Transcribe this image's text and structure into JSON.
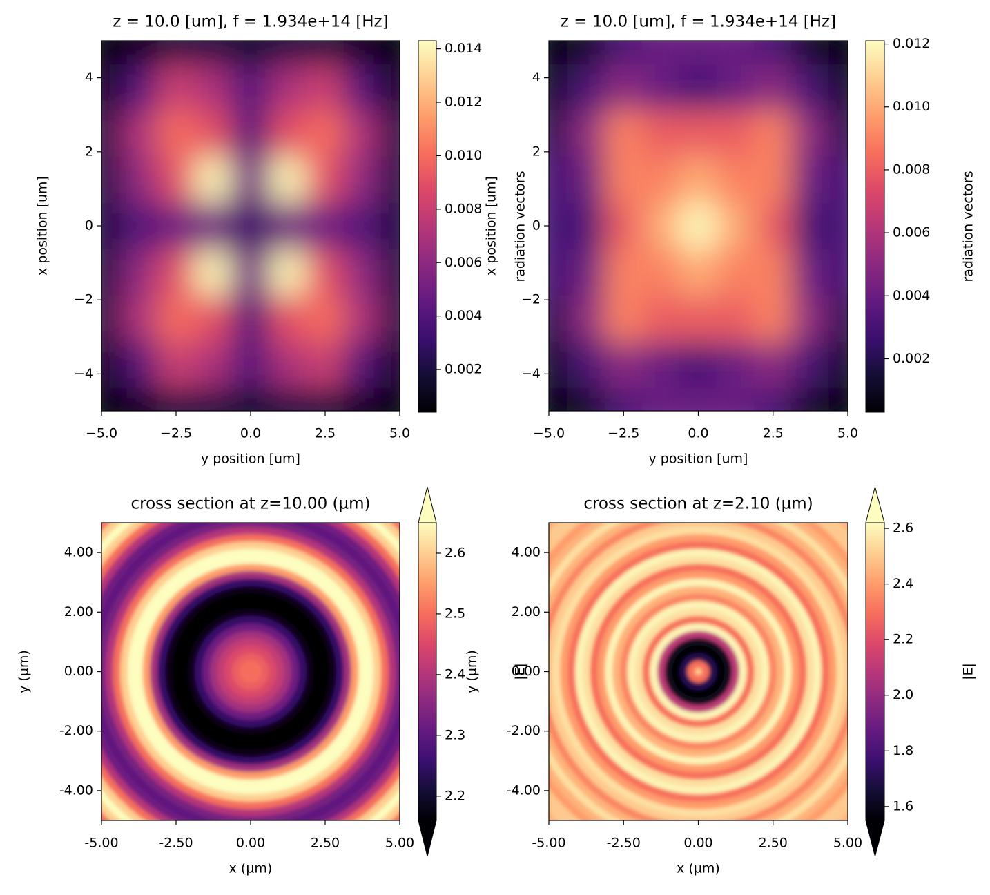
{
  "chart_data": [
    {
      "type": "heatmap",
      "title": "z = 10.0 [um], f = 1.934e+14 [Hz]",
      "xlabel": "y position [um]",
      "ylabel": "x position [um]",
      "colorbar_label": "radiation vectors",
      "colormap": "magma",
      "x": [
        -5,
        -3.75,
        -2.5,
        -1.25,
        0,
        1.25,
        2.5,
        3.75,
        5
      ],
      "y": [
        -5,
        -3.75,
        -2.5,
        -1.25,
        0,
        1.25,
        2.5,
        3.75,
        5
      ],
      "z": [
        [
          0.0004,
          0.001,
          0.002,
          0.002,
          0.0015,
          0.002,
          0.002,
          0.001,
          0.0004
        ],
        [
          0.001,
          0.004,
          0.008,
          0.007,
          0.004,
          0.007,
          0.008,
          0.004,
          0.001
        ],
        [
          0.002,
          0.007,
          0.01,
          0.009,
          0.004,
          0.009,
          0.01,
          0.007,
          0.002
        ],
        [
          0.002,
          0.006,
          0.009,
          0.014,
          0.005,
          0.014,
          0.009,
          0.006,
          0.002
        ],
        [
          0.002,
          0.004,
          0.005,
          0.005,
          0.003,
          0.005,
          0.005,
          0.004,
          0.002
        ],
        [
          0.002,
          0.006,
          0.009,
          0.014,
          0.005,
          0.014,
          0.009,
          0.006,
          0.002
        ],
        [
          0.002,
          0.007,
          0.01,
          0.009,
          0.004,
          0.009,
          0.01,
          0.007,
          0.002
        ],
        [
          0.001,
          0.004,
          0.008,
          0.007,
          0.004,
          0.007,
          0.008,
          0.004,
          0.001
        ],
        [
          0.0004,
          0.001,
          0.002,
          0.002,
          0.0015,
          0.002,
          0.002,
          0.001,
          0.0004
        ]
      ],
      "xlim": [
        -5,
        5
      ],
      "ylim": [
        -5,
        5
      ],
      "xticks": [
        {
          "value": -5,
          "label": "−5.0"
        },
        {
          "value": -2.5,
          "label": "−2.5"
        },
        {
          "value": 0,
          "label": "0.0"
        },
        {
          "value": 2.5,
          "label": "2.5"
        },
        {
          "value": 5,
          "label": "5.0"
        }
      ],
      "yticks": [
        {
          "value": -4,
          "label": "−4"
        },
        {
          "value": -2,
          "label": "−2"
        },
        0,
        2,
        4
      ],
      "clim": [
        0.0004,
        0.0143
      ],
      "cticks": [
        0.002,
        0.004,
        0.006,
        0.008,
        {
          "value": 0.01,
          "label": "0.010"
        },
        0.012,
        0.014
      ]
    },
    {
      "type": "heatmap",
      "title": "z = 10.0 [um], f = 1.934e+14 [Hz]",
      "xlabel": "y position [um]",
      "ylabel": "x position [um]",
      "colorbar_label": "radiation vectors",
      "colormap": "magma",
      "x": [
        -5,
        -3.75,
        -2.5,
        -1.25,
        0,
        1.25,
        2.5,
        3.75,
        5
      ],
      "y": [
        -5,
        -3.75,
        -2.5,
        -1.25,
        0,
        1.25,
        2.5,
        3.75,
        5
      ],
      "z": [
        [
          0.0003,
          0.001,
          0.003,
          0.004,
          0.004,
          0.004,
          0.003,
          0.001,
          0.0003
        ],
        [
          0.001,
          0.003,
          0.005,
          0.004,
          0.003,
          0.004,
          0.005,
          0.003,
          0.001
        ],
        [
          0.002,
          0.005,
          0.009,
          0.008,
          0.008,
          0.008,
          0.009,
          0.005,
          0.002
        ],
        [
          0.003,
          0.004,
          0.009,
          0.009,
          0.01,
          0.009,
          0.009,
          0.004,
          0.003
        ],
        [
          0.003,
          0.003,
          0.008,
          0.01,
          0.012,
          0.01,
          0.008,
          0.003,
          0.003
        ],
        [
          0.003,
          0.004,
          0.009,
          0.009,
          0.01,
          0.009,
          0.009,
          0.004,
          0.003
        ],
        [
          0.002,
          0.005,
          0.009,
          0.008,
          0.008,
          0.008,
          0.009,
          0.005,
          0.002
        ],
        [
          0.001,
          0.003,
          0.005,
          0.004,
          0.003,
          0.004,
          0.005,
          0.003,
          0.001
        ],
        [
          0.0003,
          0.001,
          0.003,
          0.004,
          0.004,
          0.004,
          0.003,
          0.001,
          0.0003
        ]
      ],
      "xlim": [
        -5,
        5
      ],
      "ylim": [
        -5,
        5
      ],
      "xticks": [
        {
          "value": -5,
          "label": "−5.0"
        },
        {
          "value": -2.5,
          "label": "−2.5"
        },
        {
          "value": 0,
          "label": "0.0"
        },
        {
          "value": 2.5,
          "label": "2.5"
        },
        {
          "value": 5,
          "label": "5.0"
        }
      ],
      "yticks": [
        {
          "value": -4,
          "label": "−4"
        },
        {
          "value": -2,
          "label": "−2"
        },
        0,
        2,
        4
      ],
      "clim": [
        0.0003,
        0.0121
      ],
      "cticks": [
        0.002,
        0.004,
        0.006,
        0.008,
        {
          "value": 0.01,
          "label": "0.010"
        },
        0.012
      ]
    },
    {
      "type": "radial",
      "title": "cross section at z=10.00 (µm)",
      "xlabel": "x (µm)",
      "ylabel": "y (µm)",
      "colorbar_label": "|E|",
      "colormap": "magma",
      "extend": "both",
      "r": [
        0,
        0.25,
        0.5,
        0.75,
        1,
        1.25,
        1.5,
        1.75,
        2,
        2.25,
        2.5,
        2.75,
        3,
        3.25,
        3.5,
        3.75,
        4,
        4.25,
        4.5,
        4.75,
        5,
        5.25,
        5.5,
        5.75,
        6,
        6.25,
        6.5,
        6.75,
        7
      ],
      "values": [
        2.5,
        2.5,
        2.48,
        2.45,
        2.42,
        2.38,
        2.32,
        2.25,
        2.18,
        2.16,
        2.16,
        2.18,
        2.25,
        2.38,
        2.55,
        2.65,
        2.65,
        2.6,
        2.5,
        2.4,
        2.33,
        2.3,
        2.32,
        2.4,
        2.5,
        2.6,
        2.65,
        2.6,
        2.5
      ],
      "xlim": [
        -5,
        5
      ],
      "ylim": [
        -5,
        5
      ],
      "xticks": [
        {
          "value": -5,
          "label": "-5.00"
        },
        {
          "value": -2.5,
          "label": "-2.50"
        },
        {
          "value": 0,
          "label": "0.00"
        },
        {
          "value": 2.5,
          "label": "2.50"
        },
        {
          "value": 5,
          "label": "5.00"
        }
      ],
      "yticks": [
        {
          "value": -4,
          "label": "-4.00"
        },
        {
          "value": -2,
          "label": "-2.00"
        },
        {
          "value": 0,
          "label": "0.00"
        },
        {
          "value": 2,
          "label": "2.00"
        },
        {
          "value": 4,
          "label": "4.00"
        }
      ],
      "clim": [
        2.16,
        2.65
      ],
      "cticks": [
        2.2,
        2.3,
        2.4,
        2.5,
        2.6
      ]
    },
    {
      "type": "radial",
      "title": "cross section at z=2.10 (µm)",
      "xlabel": "x (µm)",
      "ylabel": "y (µm)",
      "colorbar_label": "|E|",
      "colormap": "magma",
      "extend": "both",
      "r": [
        0,
        0.25,
        0.5,
        0.75,
        1,
        1.25,
        1.5,
        1.75,
        2,
        2.25,
        2.5,
        2.75,
        3,
        3.25,
        3.5,
        3.75,
        4,
        4.25,
        4.5,
        4.75,
        5,
        5.25,
        5.5,
        5.75,
        6,
        6.25,
        6.5,
        6.75,
        7
      ],
      "values": [
        2.5,
        2.3,
        1.7,
        1.55,
        1.6,
        2.1,
        2.6,
        2.3,
        2.55,
        2.6,
        2.35,
        2.45,
        2.6,
        2.4,
        2.3,
        2.55,
        2.6,
        2.3,
        2.4,
        2.55,
        2.5,
        2.35,
        2.45,
        2.55,
        2.45,
        2.4,
        2.5,
        2.5,
        2.45
      ],
      "xlim": [
        -5,
        5
      ],
      "ylim": [
        -5,
        5
      ],
      "xticks": [
        {
          "value": -5,
          "label": "-5.00"
        },
        {
          "value": -2.5,
          "label": "-2.50"
        },
        {
          "value": 0,
          "label": "0.00"
        },
        {
          "value": 2.5,
          "label": "2.50"
        },
        {
          "value": 5,
          "label": "5.00"
        }
      ],
      "yticks": [
        {
          "value": -4,
          "label": "-4.00"
        },
        {
          "value": -2,
          "label": "-2.00"
        },
        {
          "value": 0,
          "label": "0.00"
        },
        {
          "value": 2,
          "label": "2.00"
        },
        {
          "value": 4,
          "label": "4.00"
        }
      ],
      "clim": [
        1.55,
        2.62
      ],
      "cticks": [
        1.6,
        1.8,
        {
          "value": 2,
          "label": "2.0"
        },
        2.2,
        2.4,
        2.6
      ]
    }
  ]
}
